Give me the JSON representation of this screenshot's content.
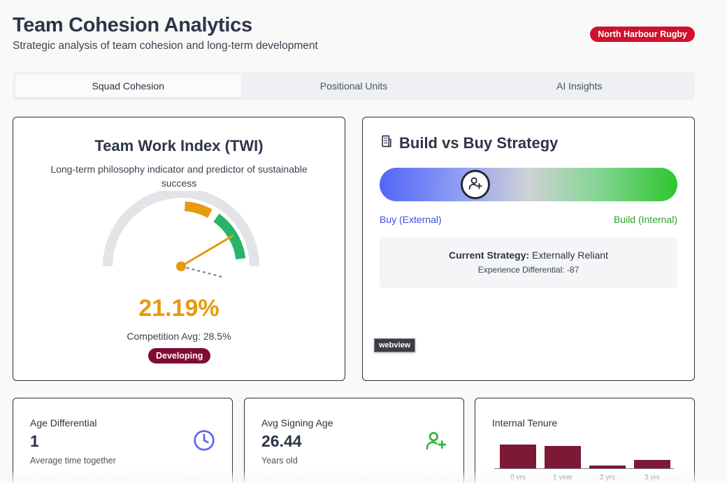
{
  "header": {
    "title": "Team Cohesion Analytics",
    "subtitle": "Strategic analysis of team cohesion and long-term development",
    "club_badge": "North Harbour Rugby"
  },
  "tabs": [
    {
      "label": "Squad Cohesion",
      "active": true
    },
    {
      "label": "Positional Units",
      "active": false
    },
    {
      "label": "AI Insights",
      "active": false
    }
  ],
  "twi": {
    "title": "Team Work Index (TWI)",
    "description": "Long-term philosophy indicator and predictor of sustainable success",
    "value": "21.19%",
    "value_number": 21.19,
    "competition_avg": "Competition Avg: 28.5%",
    "competition_avg_number": 28.5,
    "status": "Developing",
    "colors": {
      "value": "#e69a0d",
      "status": "#7f0b36",
      "track": "#e3e4e8",
      "band_amber": "#e69a0d",
      "band_green": "#27b46a"
    }
  },
  "build_vs_buy": {
    "title": "Build vs Buy Strategy",
    "icon": "building-icon",
    "left_label": "Buy (External)",
    "right_label": "Build (Internal)",
    "position_fraction": 0.28,
    "thumb_icon": "user-plus-icon",
    "strategy_label": "Current Strategy:",
    "strategy_value": "Externally Reliant",
    "experience_differential": "Experience Differential: -87"
  },
  "webview_tag": "webview",
  "stats": [
    {
      "label": "Age Differential",
      "value": "1",
      "sub": "Average time together",
      "icon": "clock-icon",
      "icon_color": "#5b63f0"
    },
    {
      "label": "Avg Signing Age",
      "value": "26.44",
      "sub": "Years old",
      "icon": "user-plus-icon",
      "icon_color": "#2fb33a"
    }
  ],
  "tenure": {
    "label": "Internal Tenure",
    "chart_data": {
      "type": "bar",
      "categories": [
        "0 yrs",
        "1 year",
        "2 yrs",
        "3 yrs"
      ],
      "values": [
        34,
        32,
        4,
        12
      ],
      "color": "#7c1934"
    }
  }
}
